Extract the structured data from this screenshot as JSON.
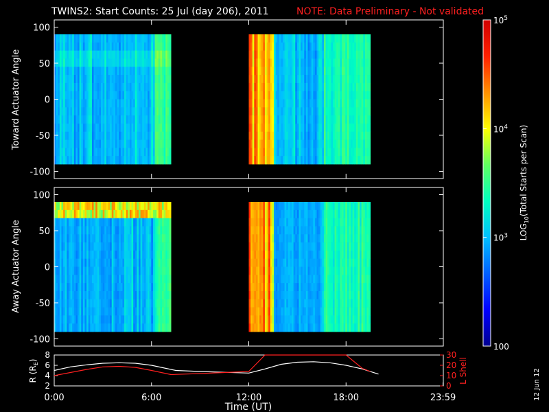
{
  "header": {
    "title": "TWINS2: Start Counts: 25 Jul (day 206), 2011",
    "note": "NOTE: Data Preliminary - Not validated"
  },
  "colors": {
    "background": "#000000",
    "axes": "#ffffff",
    "note": "#ff2020",
    "lshell_line": "#ff2020",
    "radius_line": "#ffffff"
  },
  "date_stamp": "12 Jun 12",
  "chart_data": [
    {
      "type": "heatmap",
      "id": "toward",
      "ylabel": "Toward Actuator Angle",
      "ylim": [
        -110,
        110
      ],
      "yticks": [
        "100",
        "50",
        "0",
        "-50",
        "-100"
      ],
      "xlim": [
        0,
        24
      ],
      "data_ylim": [
        -90,
        90
      ],
      "data_ranges_hours": [
        [
          0,
          7.2
        ],
        [
          12,
          19.5
        ]
      ],
      "colorscale": "log",
      "zlim": [
        100,
        100000
      ]
    },
    {
      "type": "heatmap",
      "id": "away",
      "ylabel": "Away Actuator Angle",
      "ylim": [
        -110,
        110
      ],
      "yticks": [
        "100",
        "50",
        "0",
        "-50",
        "-100"
      ],
      "xlim": [
        0,
        24
      ],
      "data_ylim": [
        -90,
        90
      ],
      "data_ranges_hours": [
        [
          0,
          7.2
        ],
        [
          12,
          19.5
        ]
      ],
      "colorscale": "log",
      "zlim": [
        100,
        100000
      ]
    },
    {
      "type": "line",
      "id": "ephemeris",
      "xlabel": "Time (UT)",
      "xticks": [
        "0:00",
        "6:00",
        "12:00",
        "18:00",
        "23:59"
      ],
      "xlim": [
        0,
        24
      ],
      "left_axis": {
        "label": "R (R",
        "label_sub": "E",
        "label_end": ")",
        "ylim": [
          2,
          8
        ],
        "ticks": [
          "8",
          "6",
          "4",
          "2"
        ]
      },
      "right_axis": {
        "label": "L Shell",
        "ylim": [
          0,
          30
        ],
        "ticks": [
          "30",
          "20",
          "10",
          "0"
        ]
      },
      "series": [
        {
          "axis": "left",
          "x": [
            0,
            1,
            2,
            3,
            4,
            5,
            6,
            7.5,
            9,
            12,
            13,
            14,
            15,
            16,
            17,
            18,
            19,
            20
          ],
          "values": [
            5.0,
            5.7,
            6.1,
            6.4,
            6.5,
            6.4,
            6.0,
            5.0,
            4.8,
            4.5,
            5.3,
            6.2,
            6.6,
            6.7,
            6.5,
            6.0,
            5.3,
            4.3
          ]
        },
        {
          "axis": "right",
          "x": [
            0,
            1,
            2,
            3,
            4,
            5,
            6,
            7.2,
            9,
            12,
            13,
            18,
            19,
            19.5
          ],
          "values": [
            10,
            13,
            16,
            18.5,
            19,
            18,
            15,
            11,
            12,
            14,
            30,
            30,
            17,
            14
          ]
        }
      ]
    }
  ],
  "colorbar": {
    "label": "LOG",
    "label_sub": "10",
    "label_rest": "(Total Starts per Scan)",
    "ticks": [
      {
        "value": 100000,
        "base": "10",
        "exp": "5"
      },
      {
        "value": 10000,
        "base": "10",
        "exp": "4"
      },
      {
        "value": 1000,
        "base": "10",
        "exp": "3"
      },
      {
        "value": 100,
        "base": "100",
        "exp": ""
      }
    ],
    "stops": [
      "#000090",
      "#0000ff",
      "#0060ff",
      "#00c0ff",
      "#00ffc0",
      "#60ff60",
      "#ffff00",
      "#ff9000",
      "#ff2000",
      "#d00000"
    ]
  }
}
